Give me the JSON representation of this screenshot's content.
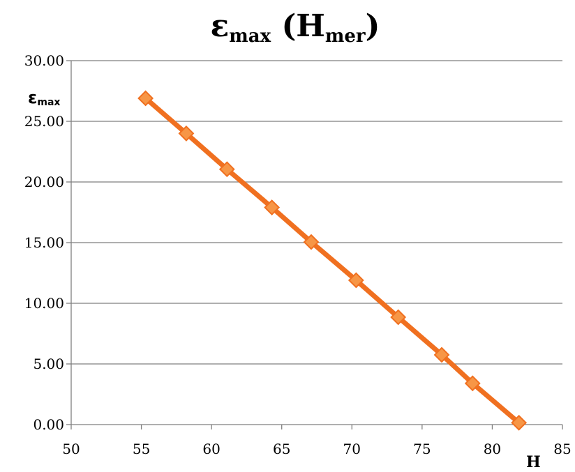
{
  "chart_data": {
    "type": "line",
    "title": {
      "main": "ε",
      "main_sub": "max",
      "paren_open": " (H",
      "paren_sub": "mer",
      "paren_close": ")"
    },
    "ylabel": {
      "main": "ε",
      "sub": "max"
    },
    "xlabel": "H",
    "xlim": [
      50,
      85
    ],
    "ylim": [
      0,
      30
    ],
    "x_ticks": [
      "50",
      "55",
      "60",
      "65",
      "70",
      "75",
      "80",
      "85"
    ],
    "y_ticks": [
      "0.00",
      "5.00",
      "10.00",
      "15.00",
      "20.00",
      "25.00",
      "30.00"
    ],
    "grid": "horizontal",
    "line_color": "#f07020",
    "marker_fill": "#f79646",
    "marker_stroke": "#f07020",
    "series": [
      {
        "x": [
          55.3,
          58.2,
          61.1,
          64.3,
          67.1,
          70.3,
          73.3,
          76.4,
          78.6,
          81.9
        ],
        "y": [
          26.9,
          24.0,
          21.05,
          17.9,
          15.05,
          11.9,
          8.85,
          5.75,
          3.4,
          0.15
        ]
      }
    ]
  }
}
